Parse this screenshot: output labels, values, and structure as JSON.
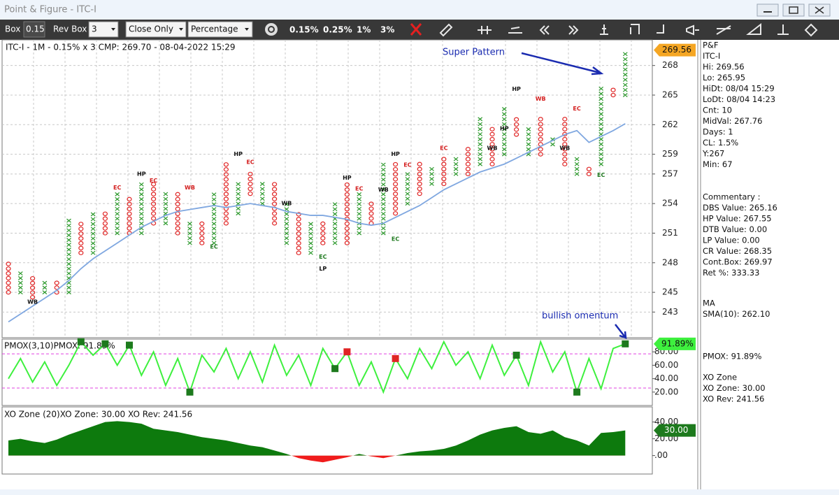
{
  "window": {
    "title": "Point & Figure - ITC-I"
  },
  "toolbar": {
    "box_label": "Box",
    "box": 0.15,
    "rev_label": "Rev Box",
    "rev": 3,
    "mode": "Close Only",
    "scale": "Percentage",
    "presets": [
      "0.15%",
      "0.25%",
      "1%",
      "3%"
    ]
  },
  "chart_data": [
    {
      "type": "pnf",
      "title": "ITC-I - 1M - 0.15% x 3 CMP: 269.70 - 08-04-2022 15:29",
      "ylim": [
        240.4,
        270.6
      ],
      "yticks": [
        243,
        245,
        248,
        251,
        254,
        257,
        259,
        262,
        265,
        268
      ],
      "grid": true,
      "x_color": "#2e9a2e",
      "o_color": "#e02424",
      "columns": [
        {
          "type": "O",
          "low": 245,
          "high": 248
        },
        {
          "type": "X",
          "low": 245,
          "high": 247
        },
        {
          "type": "O",
          "low": 244.5,
          "high": 246.5
        },
        {
          "type": "X",
          "low": 245,
          "high": 246
        },
        {
          "type": "O",
          "low": 245,
          "high": 246
        },
        {
          "type": "X",
          "low": 245,
          "high": 252.5
        },
        {
          "type": "O",
          "low": 249,
          "high": 252
        },
        {
          "type": "X",
          "low": 249,
          "high": 253
        },
        {
          "type": "O",
          "low": 251,
          "high": 253
        },
        {
          "type": "X",
          "low": 251,
          "high": 255
        },
        {
          "type": "O",
          "low": 251,
          "high": 254.5
        },
        {
          "type": "X",
          "low": 251,
          "high": 256
        },
        {
          "type": "O",
          "low": 252,
          "high": 256
        },
        {
          "type": "X",
          "low": 252,
          "high": 255
        },
        {
          "type": "O",
          "low": 251,
          "high": 255
        },
        {
          "type": "X",
          "low": 250,
          "high": 252
        },
        {
          "type": "O",
          "low": 250,
          "high": 252
        },
        {
          "type": "X",
          "low": 250,
          "high": 255
        },
        {
          "type": "O",
          "low": 252,
          "high": 258
        },
        {
          "type": "X",
          "low": 253,
          "high": 256
        },
        {
          "type": "O",
          "low": 255,
          "high": 257
        },
        {
          "type": "X",
          "low": 254,
          "high": 256
        },
        {
          "type": "O",
          "low": 252,
          "high": 256
        },
        {
          "type": "X",
          "low": 250,
          "high": 254
        },
        {
          "type": "O",
          "low": 249,
          "high": 253
        },
        {
          "type": "X",
          "low": 249,
          "high": 252
        },
        {
          "type": "O",
          "low": 250,
          "high": 252
        },
        {
          "type": "X",
          "low": 250,
          "high": 254
        },
        {
          "type": "O",
          "low": 250,
          "high": 256
        },
        {
          "type": "X",
          "low": 251,
          "high": 255
        },
        {
          "type": "O",
          "low": 252,
          "high": 254
        },
        {
          "type": "X",
          "low": 251,
          "high": 258
        },
        {
          "type": "O",
          "low": 253,
          "high": 258
        },
        {
          "type": "X",
          "low": 254,
          "high": 257
        },
        {
          "type": "O",
          "low": 255,
          "high": 258
        },
        {
          "type": "X",
          "low": 256,
          "high": 258
        },
        {
          "type": "O",
          "low": 256,
          "high": 259
        },
        {
          "type": "X",
          "low": 257,
          "high": 259
        },
        {
          "type": "O",
          "low": 257,
          "high": 260
        },
        {
          "type": "X",
          "low": 258,
          "high": 263
        },
        {
          "type": "O",
          "low": 258,
          "high": 262
        },
        {
          "type": "X",
          "low": 259,
          "high": 264
        },
        {
          "type": "O",
          "low": 261,
          "high": 263
        },
        {
          "type": "X",
          "low": 259,
          "high": 262
        },
        {
          "type": "O",
          "low": 259,
          "high": 263
        },
        {
          "type": "X",
          "low": 260,
          "high": 261
        },
        {
          "type": "O",
          "low": 258,
          "high": 263
        },
        {
          "type": "X",
          "low": 257,
          "high": 259
        },
        {
          "type": "O",
          "low": 257,
          "high": 258
        },
        {
          "type": "X",
          "low": 258,
          "high": 266
        },
        {
          "type": "O",
          "low": 265,
          "high": 266
        },
        {
          "type": "X",
          "low": 265,
          "high": 269.56
        }
      ],
      "sma": {
        "color": "#7fa7e0",
        "values": [
          242.0,
          242.8,
          243.6,
          244.4,
          245.2,
          246.2,
          247.4,
          248.4,
          249.2,
          250.0,
          250.8,
          251.6,
          252.2,
          252.8,
          253.2,
          253.4,
          253.6,
          253.8,
          253.6,
          253.8,
          254.0,
          253.8,
          253.6,
          253.2,
          253.0,
          252.8,
          252.8,
          252.6,
          252.4,
          252.0,
          251.8,
          252.0,
          252.6,
          253.2,
          253.8,
          254.6,
          255.4,
          256.0,
          256.6,
          257.2,
          257.6,
          258.0,
          258.6,
          259.2,
          259.8,
          260.4,
          261.0,
          261.4,
          260.2,
          260.8,
          261.4,
          262.1
        ]
      },
      "last_price": {
        "value": 269.56,
        "color": "#f5a623"
      },
      "annotations": [
        {
          "text": "WB",
          "col": 2,
          "price": 244,
          "color": "#111"
        },
        {
          "text": "EC",
          "col": 9,
          "price": 255.6,
          "color": "#d42020"
        },
        {
          "text": "HP",
          "col": 11,
          "price": 257,
          "color": "#111"
        },
        {
          "text": "EC",
          "col": 12,
          "price": 256.3,
          "color": "#d42020"
        },
        {
          "text": "WB",
          "col": 15,
          "price": 255.6,
          "color": "#d42020"
        },
        {
          "text": "EC",
          "col": 17,
          "price": 249.6,
          "color": "#1f7a1f"
        },
        {
          "text": "HP",
          "col": 19,
          "price": 259,
          "color": "#111"
        },
        {
          "text": "EC",
          "col": 20,
          "price": 258.2,
          "color": "#d42020"
        },
        {
          "text": "WB",
          "col": 23,
          "price": 254,
          "color": "#111"
        },
        {
          "text": "EC",
          "col": 26,
          "price": 248.6,
          "color": "#1f7a1f"
        },
        {
          "text": "LP",
          "col": 26,
          "price": 247.4,
          "color": "#111"
        },
        {
          "text": "HP",
          "col": 28,
          "price": 256.6,
          "color": "#111"
        },
        {
          "text": "EC",
          "col": 29,
          "price": 255.5,
          "color": "#d42020"
        },
        {
          "text": "WB",
          "col": 31,
          "price": 255.4,
          "color": "#111"
        },
        {
          "text": "HP",
          "col": 32,
          "price": 259,
          "color": "#111"
        },
        {
          "text": "EC",
          "col": 33,
          "price": 257.9,
          "color": "#d42020"
        },
        {
          "text": "EC",
          "col": 32,
          "price": 250.4,
          "color": "#1f7a1f"
        },
        {
          "text": "EC",
          "col": 36,
          "price": 259.6,
          "color": "#d42020"
        },
        {
          "text": "WB",
          "col": 40,
          "price": 259.6,
          "color": "#111"
        },
        {
          "text": "HP",
          "col": 41,
          "price": 261.6,
          "color": "#111"
        },
        {
          "text": "HP",
          "col": 42,
          "price": 265.6,
          "color": "#111"
        },
        {
          "text": "WB",
          "col": 44,
          "price": 264.6,
          "color": "#d42020"
        },
        {
          "text": "WB",
          "col": 46,
          "price": 259.6,
          "color": "#111"
        },
        {
          "text": "EC",
          "col": 47,
          "price": 263.6,
          "color": "#d42020"
        },
        {
          "text": "EC",
          "col": 49,
          "price": 256.9,
          "color": "#1f7a1f"
        }
      ],
      "notes": [
        {
          "text": "Super Pattern",
          "color": "#1a2bb0"
        }
      ]
    },
    {
      "type": "line",
      "title": "PMOX(3,10)PMOX: 91.89%",
      "ylim": [
        0,
        99
      ],
      "yticks": [
        {
          "value": 20,
          "label": "20.00"
        },
        {
          "value": 40,
          "label": "40.00"
        },
        {
          "value": 60,
          "label": "60.00"
        },
        {
          "value": 80,
          "label": "80.00"
        }
      ],
      "bands": [
        77,
        26
      ],
      "color": "#3ef03e",
      "values": [
        40,
        70,
        35,
        65,
        30,
        60,
        95,
        75,
        92,
        60,
        90,
        45,
        80,
        30,
        70,
        20,
        75,
        50,
        85,
        40,
        80,
        35,
        90,
        45,
        75,
        30,
        85,
        55,
        80,
        30,
        65,
        20,
        70,
        40,
        85,
        55,
        95,
        60,
        80,
        40,
        90,
        45,
        75,
        30,
        95,
        50,
        80,
        20,
        70,
        25,
        85,
        91.89
      ],
      "signals": [
        {
          "index": 6,
          "color": "#1d7a1d"
        },
        {
          "index": 8,
          "color": "#1d7a1d"
        },
        {
          "index": 10,
          "color": "#1d7a1d"
        },
        {
          "index": 15,
          "color": "#1d7a1d"
        },
        {
          "index": 27,
          "color": "#1d7a1d"
        },
        {
          "index": 28,
          "color": "#e02424"
        },
        {
          "index": 32,
          "color": "#e02424"
        },
        {
          "index": 42,
          "color": "#1d7a1d"
        },
        {
          "index": 47,
          "color": "#1d7a1d"
        },
        {
          "index": 51,
          "color": "#1d7a1d"
        }
      ],
      "last_label": "91.89%",
      "notes": [
        {
          "text": "bullish omentum",
          "color": "#1a2bb0"
        }
      ]
    },
    {
      "type": "area",
      "title": "XO Zone (20)XO Zone: 30.00 XO Rev: 241.56",
      "ylim": [
        -22,
        58
      ],
      "yticks": [
        {
          "value": 0,
          "label": ".00"
        },
        {
          "value": 20,
          "label": "20.00"
        },
        {
          "value": 40,
          "label": "40.00"
        }
      ],
      "color": "#0d7a0d",
      "negative_color": "#f01c1c",
      "values": [
        18,
        20,
        17,
        15,
        19,
        25,
        30,
        35,
        40,
        41,
        40,
        38,
        32,
        30,
        28,
        25,
        22,
        20,
        18,
        15,
        12,
        10,
        6,
        2,
        -3,
        -6,
        -8,
        -5,
        -2,
        2,
        -1,
        -3,
        0,
        3,
        5,
        6,
        8,
        12,
        18,
        25,
        30,
        33,
        35,
        28,
        26,
        30,
        22,
        18,
        12,
        27,
        28,
        30
      ],
      "last_label": "30.00"
    }
  ],
  "info_panel": [
    {
      "lines": [
        "P&F",
        "ITC-I",
        "Hi: 269.56",
        "Lo: 265.95",
        "HiDt: 08/04 15:29",
        "LoDt: 08/04 14:23",
        "Cnt: 10",
        "MidVal: 267.76",
        "Days: 1",
        "CL: 1.5%",
        "Y:267",
        "Min: 67"
      ]
    },
    {
      "lines": [
        "Commentary :",
        "DBS Value: 265.16",
        "HP Value: 267.55",
        "DTB Value: 0.00",
        "LP Value: 0.00",
        "CR Value: 268.35",
        "Cont.Box: 269.97",
        "Ret %: 333.33"
      ]
    },
    {
      "lines": [
        "MA",
        "SMA(10): 262.10"
      ]
    },
    {
      "lines": [
        "PMOX: 91.89%"
      ]
    },
    {
      "lines": [
        "XO Zone",
        "XO Zone: 30.00",
        "XO Rev: 241.56"
      ]
    }
  ]
}
